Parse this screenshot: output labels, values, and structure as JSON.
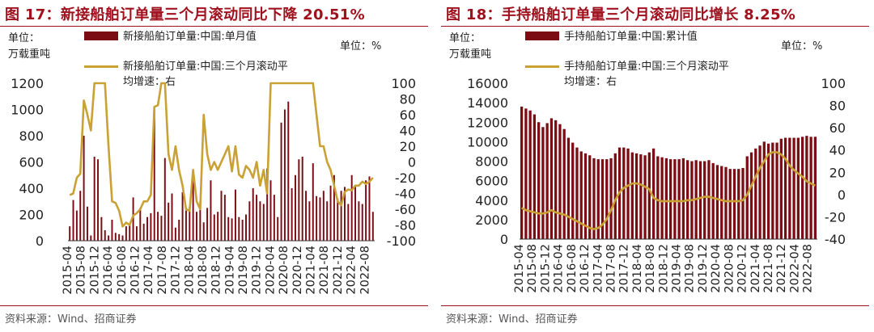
{
  "colors": {
    "title": "#a0111e",
    "bar": "#7b0c14",
    "line": "#c9a134"
  },
  "chart_data": [
    {
      "type": "bar+line",
      "title": "图 17：新接船舶订单量三个月滚动同比下降 20.51%",
      "unit_left": [
        "单位：",
        "万载重吨"
      ],
      "unit_right": "单位：%",
      "legend": [
        "新接船舶订单量:中国:单月值",
        "新接船舶订单量:中国:三个月滚动平",
        "均增速：右"
      ],
      "ylim_left": [
        0,
        1200
      ],
      "ylim_right": [
        -100,
        100
      ],
      "yticks_left": [
        "0",
        "200",
        "400",
        "600",
        "800",
        "1000",
        "1200"
      ],
      "yticks_right": [
        "-100",
        "-80",
        "-60",
        "-40",
        "-20",
        "0",
        "20",
        "40",
        "60",
        "80",
        "100"
      ],
      "xticks": [
        "2015-04",
        "2015-08",
        "2015-12",
        "2016-04",
        "2016-08",
        "2016-12",
        "2017-04",
        "2017-08",
        "2017-12",
        "2018-04",
        "2018-08",
        "2018-12",
        "2019-04",
        "2019-08",
        "2019-12",
        "2020-04",
        "2020-08",
        "2020-12",
        "2021-04",
        "2021-08",
        "2021-12",
        "2022-04",
        "2022-08"
      ],
      "bars": [
        110,
        310,
        230,
        380,
        800,
        260,
        40,
        640,
        620,
        180,
        80,
        40,
        160,
        60,
        50,
        40,
        110,
        120,
        330,
        110,
        250,
        130,
        180,
        210,
        1010,
        220,
        190,
        630,
        290,
        360,
        100,
        160,
        370,
        230,
        260,
        470,
        220,
        300,
        140,
        250,
        460,
        200,
        220,
        380,
        350,
        180,
        170,
        390,
        180,
        160,
        200,
        300,
        400,
        350,
        300,
        280,
        550,
        460,
        350,
        180,
        900,
        1000,
        1060,
        400,
        500,
        620,
        640,
        380,
        300,
        590,
        340,
        330,
        380,
        300,
        420,
        500,
        320,
        380,
        410,
        280,
        500,
        420,
        300,
        280,
        460,
        490,
        220
      ],
      "line": [
        -42,
        -40,
        -20,
        -15,
        78,
        60,
        40,
        100,
        100,
        100,
        100,
        20,
        -50,
        -52,
        -62,
        -82,
        -77,
        -80,
        -68,
        -65,
        -60,
        -50,
        -50,
        -42,
        70,
        72,
        100,
        100,
        10,
        -10,
        20,
        -10,
        -30,
        -60,
        -62,
        -10,
        -50,
        -60,
        60,
        10,
        -10,
        0,
        -10,
        0,
        10,
        20,
        -12,
        20,
        -16,
        -20,
        -5,
        -10,
        -20,
        0,
        -30,
        -10,
        -40,
        100,
        100,
        100,
        100,
        100,
        100,
        100,
        100,
        100,
        100,
        100,
        100,
        100,
        60,
        20,
        20,
        0,
        -10,
        -30,
        -50,
        -55,
        -38,
        -35,
        -36,
        -30,
        -30,
        -25,
        -28,
        -25,
        -20
      ]
    },
    {
      "type": "bar+line",
      "title": "图 18：手持船舶订单量三个月滚动同比增长 8.25%",
      "unit_left": [
        "单位：",
        "万载重吨"
      ],
      "unit_right": "单位：%",
      "legend": [
        "手持船舶订单量:中国:累计值",
        "手持船舶订单量:中国:三个月滚动平",
        "均增速：右"
      ],
      "ylim_left": [
        0,
        16000
      ],
      "ylim_right": [
        -40,
        100
      ],
      "yticks_left": [
        "0",
        "2000",
        "4000",
        "6000",
        "8000",
        "10000",
        "12000",
        "14000",
        "16000"
      ],
      "yticks_right": [
        "-40",
        "-20",
        "0",
        "20",
        "40",
        "60",
        "80",
        "100"
      ],
      "xticks": [
        "2015-04",
        "2015-08",
        "2015-12",
        "2016-04",
        "2016-08",
        "2016-12",
        "2017-04",
        "2017-08",
        "2017-12",
        "2018-04",
        "2018-08",
        "2018-12",
        "2019-04",
        "2019-08",
        "2019-12",
        "2020-04",
        "2020-08",
        "2020-12",
        "2021-04",
        "2021-08",
        "2021-12",
        "2022-04",
        "2022-08"
      ],
      "bars": [
        13600,
        13400,
        13200,
        12800,
        12000,
        11500,
        11900,
        12400,
        12200,
        11800,
        11300,
        10400,
        9900,
        9400,
        9000,
        8800,
        8600,
        8300,
        8200,
        8200,
        8200,
        8300,
        8800,
        9400,
        9400,
        9300,
        8900,
        8800,
        8700,
        8600,
        8900,
        9300,
        8500,
        8400,
        8300,
        8200,
        8200,
        8200,
        8300,
        8100,
        8000,
        8100,
        8000,
        8000,
        8100,
        7800,
        7600,
        7500,
        7400,
        7200,
        7200,
        7200,
        7300,
        8500,
        8900,
        9300,
        9600,
        10000,
        9800,
        9900,
        9900,
        10300,
        10400,
        10400,
        10400,
        10400,
        10500,
        10600,
        10500,
        10500
      ],
      "line": [
        -12,
        -14,
        -15,
        -16,
        -17,
        -17,
        -16,
        -14,
        -16,
        -17,
        -18,
        -20,
        -22,
        -24,
        -26,
        -28,
        -30,
        -31,
        -30,
        -27,
        -22,
        -14,
        -5,
        2,
        6,
        8,
        10,
        10,
        9,
        7,
        5,
        -3,
        -5,
        -6,
        -6,
        -6,
        -6,
        -6,
        -6,
        -5,
        -5,
        -4,
        -3,
        -2,
        -2,
        -3,
        -4,
        -5,
        -6,
        -6,
        -6,
        -6,
        -5,
        0,
        8,
        16,
        24,
        30,
        36,
        38,
        38,
        36,
        32,
        26,
        22,
        19,
        16,
        12,
        10,
        8
      ]
    }
  ],
  "source": "资料来源：Wind、招商证券"
}
